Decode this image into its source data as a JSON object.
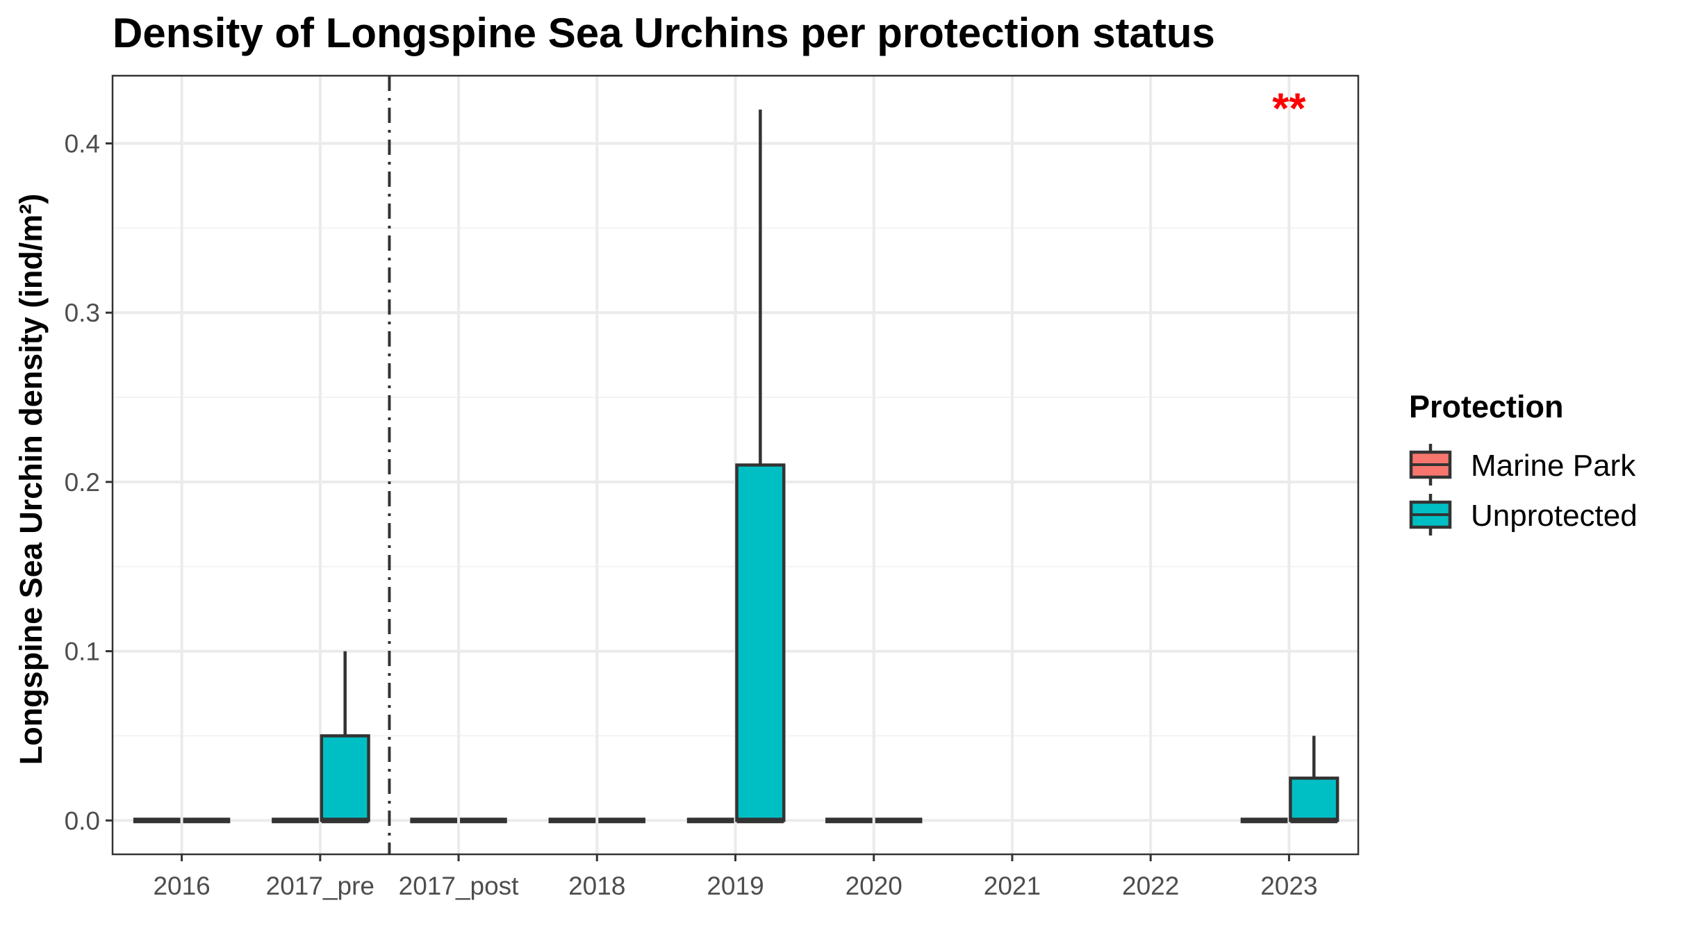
{
  "chart_data": {
    "type": "box",
    "title": "Density of Longspine Sea Urchins per protection status",
    "xlabel": "",
    "ylabel": "Longspine Sea Urchin density (ind/m²)",
    "categories": [
      "2016",
      "2017_pre",
      "2017_post",
      "2018",
      "2019",
      "2020",
      "2021",
      "2022",
      "2023"
    ],
    "ylim": [
      -0.02,
      0.44
    ],
    "yticks": [
      0.0,
      0.1,
      0.2,
      0.3,
      0.4
    ],
    "ytick_labels": [
      "0.0",
      "0.1",
      "0.2",
      "0.3",
      "0.4"
    ],
    "grid": true,
    "legend": {
      "title": "Protection",
      "position": "right"
    },
    "series": [
      {
        "name": "Marine Park",
        "color": "#F8766D",
        "boxes": [
          {
            "category": "2016",
            "min": 0,
            "q1": 0,
            "median": 0,
            "q3": 0,
            "max": 0
          },
          {
            "category": "2017_pre",
            "min": 0,
            "q1": 0,
            "median": 0,
            "q3": 0,
            "max": 0
          },
          {
            "category": "2017_post",
            "min": 0,
            "q1": 0,
            "median": 0,
            "q3": 0,
            "max": 0
          },
          {
            "category": "2018",
            "min": 0,
            "q1": 0,
            "median": 0,
            "q3": 0,
            "max": 0
          },
          {
            "category": "2019",
            "min": 0,
            "q1": 0,
            "median": 0,
            "q3": 0,
            "max": 0
          },
          {
            "category": "2020",
            "min": 0,
            "q1": 0,
            "median": 0,
            "q3": 0,
            "max": 0
          },
          {
            "category": "2023",
            "min": 0,
            "q1": 0,
            "median": 0,
            "q3": 0,
            "max": 0
          }
        ]
      },
      {
        "name": "Unprotected",
        "color": "#00BFC4",
        "boxes": [
          {
            "category": "2016",
            "min": 0,
            "q1": 0,
            "median": 0,
            "q3": 0,
            "max": 0
          },
          {
            "category": "2017_pre",
            "min": 0,
            "q1": 0,
            "median": 0,
            "q3": 0.05,
            "max": 0.1
          },
          {
            "category": "2017_post",
            "min": 0,
            "q1": 0,
            "median": 0,
            "q3": 0,
            "max": 0
          },
          {
            "category": "2018",
            "min": 0,
            "q1": 0,
            "median": 0,
            "q3": 0,
            "max": 0
          },
          {
            "category": "2019",
            "min": 0,
            "q1": 0,
            "median": 0,
            "q3": 0.21,
            "max": 0.42
          },
          {
            "category": "2020",
            "min": 0,
            "q1": 0,
            "median": 0,
            "q3": 0,
            "max": 0
          },
          {
            "category": "2023",
            "min": 0,
            "q1": 0,
            "median": 0,
            "q3": 0.025,
            "max": 0.05
          }
        ]
      }
    ],
    "reference_line": {
      "between": [
        "2017_pre",
        "2017_post"
      ],
      "style": "dot-dash"
    },
    "annotations": [
      {
        "text": "**",
        "category": "2023",
        "y": 0.425,
        "color": "#FF0000"
      }
    ]
  }
}
